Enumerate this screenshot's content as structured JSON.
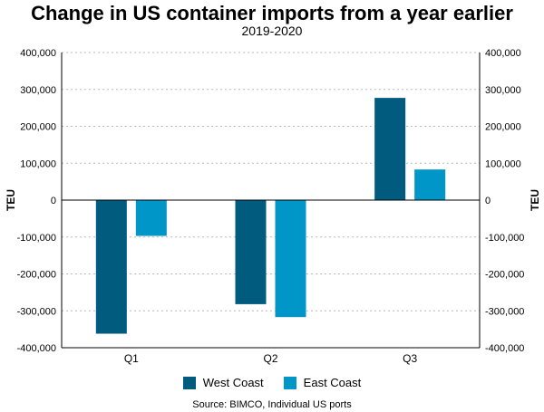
{
  "chart_data": {
    "type": "bar",
    "title": "Change in US container imports from a year earlier",
    "subtitle": "2019-2020",
    "ylabel": "TEU",
    "ylabel_right": "TEU",
    "categories": [
      "Q1",
      "Q2",
      "Q3"
    ],
    "series": [
      {
        "name": "West Coast",
        "color": "#005b7f",
        "values": [
          -362000,
          -282000,
          277000
        ]
      },
      {
        "name": "East Coast",
        "color": "#0096c7",
        "values": [
          -97000,
          -317000,
          83000
        ]
      }
    ],
    "ylim": [
      -400000,
      400000
    ],
    "yticks": [
      400000,
      300000,
      200000,
      100000,
      0,
      -100000,
      -200000,
      -300000,
      -400000
    ],
    "ytick_labels": [
      "400,000",
      "300,000",
      "200,000",
      "100,000",
      "0",
      "-100,000",
      "-200,000",
      "-300,000",
      "-400,000"
    ],
    "grid": true,
    "legend_position": "bottom",
    "source": "Source: BIMCO, Individual US ports"
  }
}
